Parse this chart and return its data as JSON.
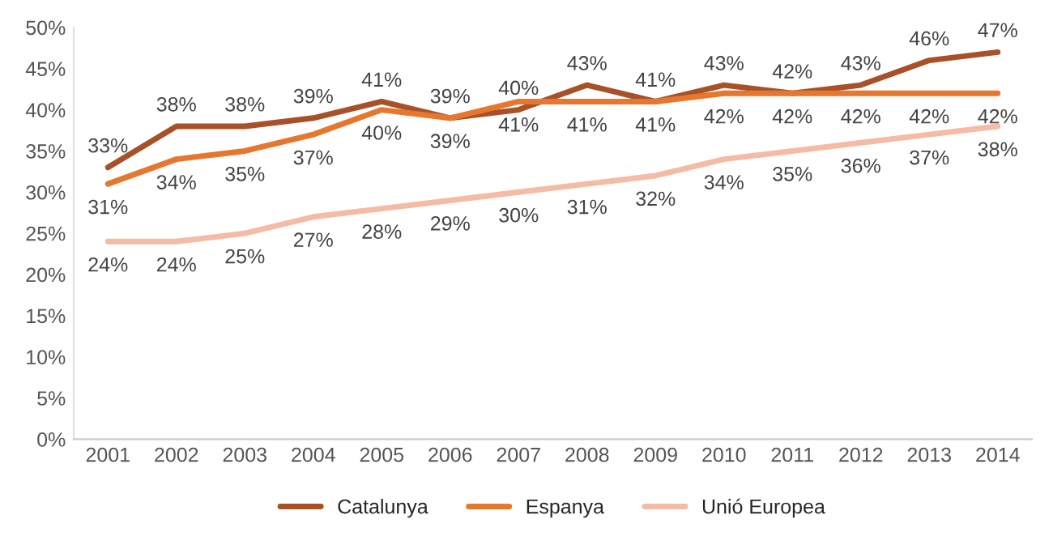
{
  "chart_data": {
    "type": "line",
    "categories": [
      "2001",
      "2002",
      "2003",
      "2004",
      "2005",
      "2006",
      "2007",
      "2008",
      "2009",
      "2010",
      "2011",
      "2012",
      "2013",
      "2014"
    ],
    "ylim": [
      0,
      50
    ],
    "yticks": [
      {
        "value": 0,
        "label": "0%"
      },
      {
        "value": 5,
        "label": "5%"
      },
      {
        "value": 10,
        "label": "10%"
      },
      {
        "value": 15,
        "label": "15%"
      },
      {
        "value": 20,
        "label": "20%"
      },
      {
        "value": 25,
        "label": "25%"
      },
      {
        "value": 30,
        "label": "30%"
      },
      {
        "value": 35,
        "label": "35%"
      },
      {
        "value": 40,
        "label": "40%"
      },
      {
        "value": 45,
        "label": "45%"
      },
      {
        "value": 50,
        "label": "50%"
      }
    ],
    "grid": false,
    "legend": "bottom",
    "marker": "none",
    "line_style": "solid",
    "series": [
      {
        "name": "Catalunya",
        "color": "#a85128",
        "values": [
          33,
          38,
          38,
          39,
          41,
          39,
          40,
          43,
          41,
          43,
          42,
          43,
          46,
          47
        ],
        "value_labels": [
          "33%",
          "38%",
          "38%",
          "39%",
          "41%",
          "39%",
          "40%",
          "43%",
          "41%",
          "43%",
          "42%",
          "43%",
          "46%",
          "47%"
        ]
      },
      {
        "name": "Espanya",
        "color": "#e5772f",
        "values": [
          31,
          34,
          35,
          37,
          40,
          39,
          41,
          41,
          41,
          42,
          42,
          42,
          42,
          42
        ],
        "value_labels": [
          "31%",
          "34%",
          "35%",
          "37%",
          "40%",
          "39%",
          "41%",
          "41%",
          "41%",
          "42%",
          "42%",
          "42%",
          "42%",
          "42%"
        ]
      },
      {
        "name": "Unió Europea",
        "color": "#f4bba6",
        "values": [
          24,
          24,
          25,
          27,
          28,
          29,
          30,
          31,
          32,
          34,
          35,
          36,
          37,
          38
        ],
        "value_labels": [
          "24%",
          "24%",
          "25%",
          "27%",
          "28%",
          "29%",
          "30%",
          "31%",
          "32%",
          "34%",
          "35%",
          "36%",
          "37%",
          "38%"
        ]
      }
    ]
  }
}
